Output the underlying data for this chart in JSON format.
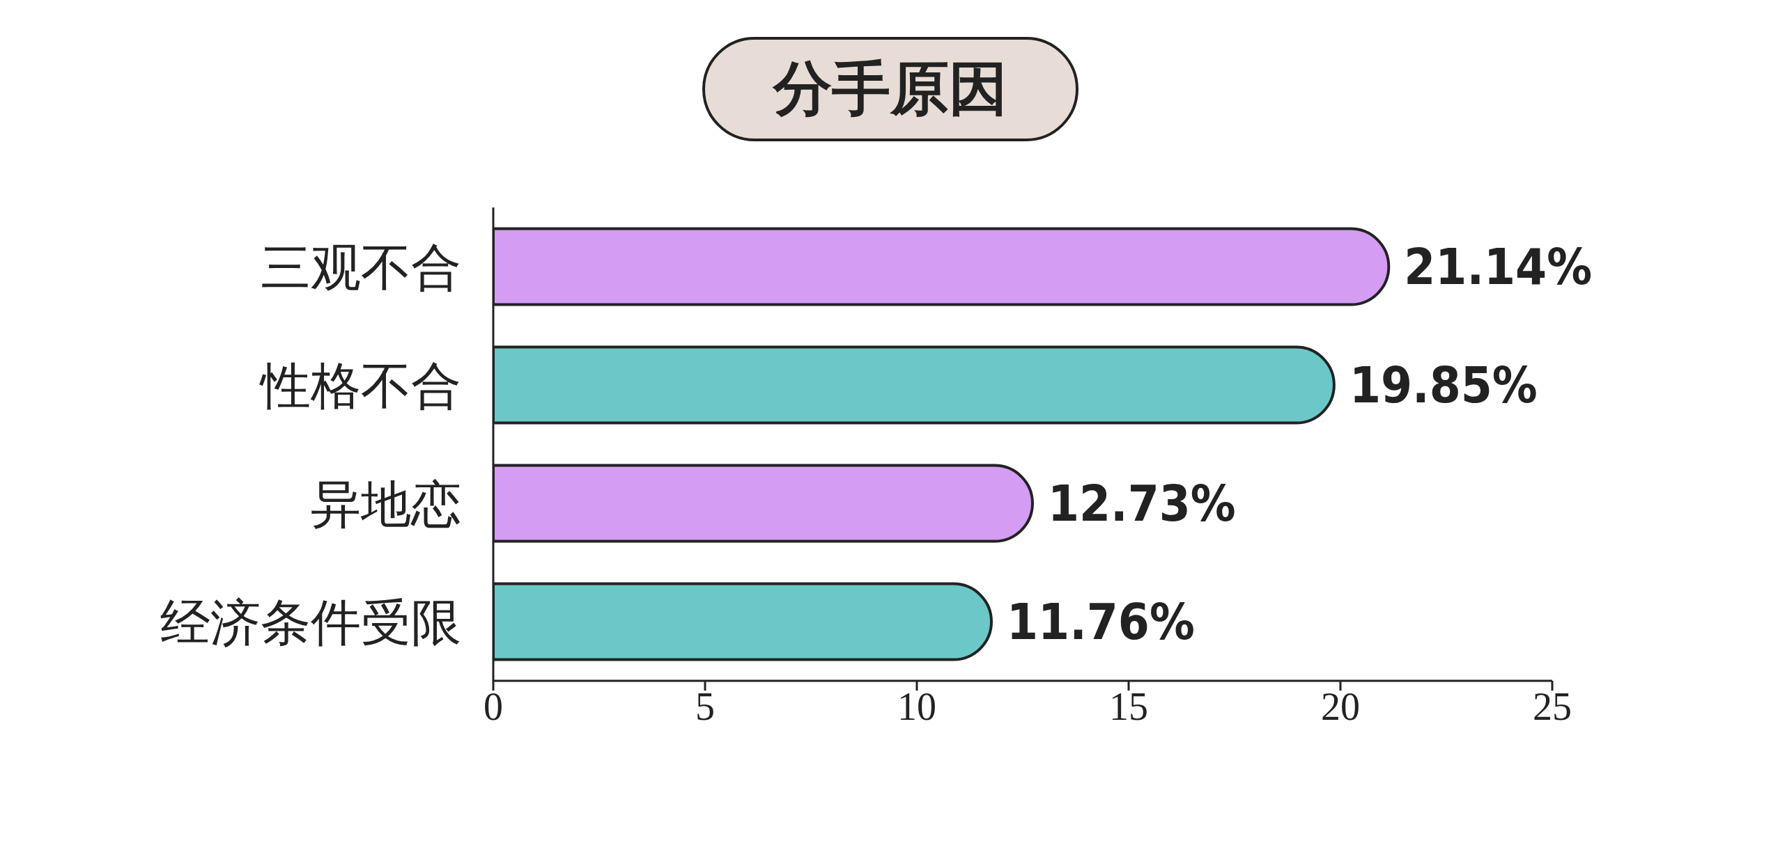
{
  "chart_data": {
    "type": "bar",
    "orientation": "horizontal",
    "title": "分手原因",
    "categories": [
      "三观不合",
      "性格不合",
      "异地恋",
      "经济条件受限"
    ],
    "values": [
      21.14,
      19.85,
      12.73,
      11.76
    ],
    "colors": [
      "#d49cf2",
      "#6cc7c8",
      "#d49cf2",
      "#6cc7c8"
    ],
    "value_labels": [
      "21.14%",
      "19.85%",
      "12.73%",
      "11.76%"
    ],
    "xlim": [
      0,
      25
    ],
    "xticks": [
      0,
      5,
      10,
      15,
      20,
      25
    ],
    "grid": false,
    "legend": false
  }
}
